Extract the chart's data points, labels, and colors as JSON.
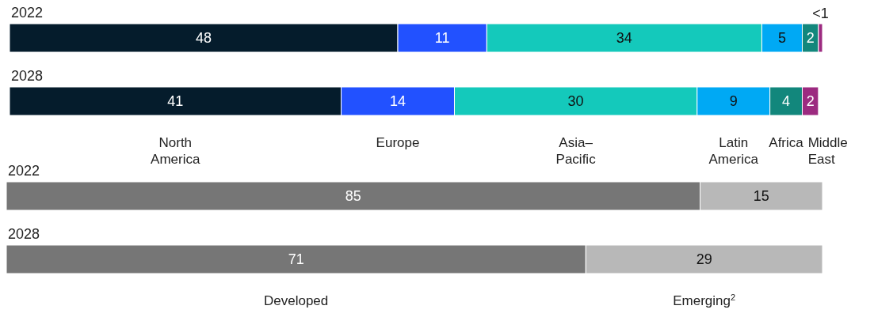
{
  "chart_data": [
    {
      "type": "bar",
      "orientation": "horizontal",
      "stacked": true,
      "legend": "bottom",
      "categories": [
        "2022",
        "2028"
      ],
      "series": [
        {
          "name": "North\nAmerica",
          "color": "#051c2c",
          "values": [
            48,
            41
          ],
          "value_labels": [
            "48",
            "41"
          ]
        },
        {
          "name": "Europe",
          "color": "#2251ff",
          "values": [
            11,
            14
          ],
          "value_labels": [
            "11",
            "14"
          ]
        },
        {
          "name": "Asia–\nPacific",
          "color": "#14c9bb",
          "values": [
            34,
            30
          ],
          "value_labels": [
            "34",
            "30"
          ]
        },
        {
          "name": "Latin\nAmerica",
          "color": "#00a9f4",
          "values": [
            5,
            9
          ],
          "value_labels": [
            "5",
            "9"
          ]
        },
        {
          "name": "Africa",
          "color": "#12877c",
          "values": [
            2,
            4
          ],
          "value_labels": [
            "2",
            "4"
          ]
        },
        {
          "name": "Middle\nEast",
          "color": "#9c2a80",
          "values": [
            0.5,
            2
          ],
          "value_labels": [
            "<1",
            "2"
          ]
        }
      ]
    },
    {
      "type": "bar",
      "orientation": "horizontal",
      "stacked": true,
      "legend": "bottom",
      "categories": [
        "2022",
        "2028"
      ],
      "series": [
        {
          "name": "Developed",
          "color": "#767676",
          "values": [
            85,
            71
          ],
          "value_labels": [
            "85",
            "71"
          ]
        },
        {
          "name": "Emerging$^{2}$",
          "color": "#b8b8b8",
          "values": [
            15,
            29
          ],
          "value_labels": [
            "15",
            "29"
          ]
        }
      ]
    }
  ]
}
